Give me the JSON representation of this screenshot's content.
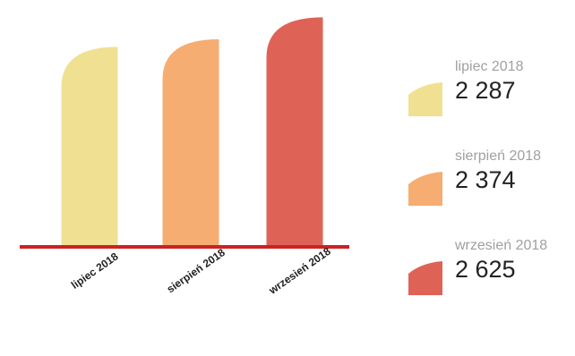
{
  "chart_data": {
    "type": "bar",
    "categories": [
      "lipiec 2018",
      "sierpień 2018",
      "wrzesień 2018"
    ],
    "values": [
      2287,
      2374,
      2625
    ],
    "colors": [
      "#f0e192",
      "#f5ad71",
      "#de6356"
    ],
    "axis_color": "#cc2222",
    "ylim": [
      0,
      2700
    ],
    "grid": false,
    "legend_position": "right"
  },
  "legend": {
    "items": [
      {
        "label": "lipiec 2018",
        "value": "2 287"
      },
      {
        "label": "sierpień 2018",
        "value": "2 374"
      },
      {
        "label": "wrzesień 2018",
        "value": "2 625"
      }
    ]
  }
}
